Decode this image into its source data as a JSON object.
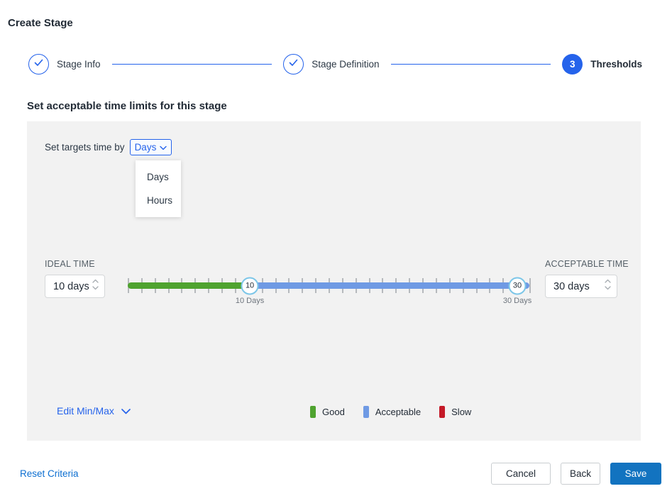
{
  "page": {
    "title": "Create Stage"
  },
  "stepper": {
    "steps": [
      {
        "label": "Stage Info",
        "state": "complete"
      },
      {
        "label": "Stage Definition",
        "state": "complete"
      },
      {
        "label": "Thresholds",
        "state": "active",
        "number": "3"
      }
    ]
  },
  "section": {
    "heading": "Set acceptable time limits for this stage"
  },
  "targets": {
    "label": "Set targets time by",
    "selected": "Days",
    "options": [
      "Days",
      "Hours"
    ]
  },
  "ideal": {
    "label": "IDEAL TIME",
    "value": "10 days"
  },
  "acceptable": {
    "label": "ACCEPTABLE TIME",
    "value": "30 days"
  },
  "slider": {
    "min_handle": "10",
    "max_handle": "30",
    "min_label": "10 Days",
    "max_label": "30 Days",
    "min_percent": 30.4,
    "max_percent": 97,
    "tick_intervals": 30
  },
  "edit_minmax": {
    "label": "Edit Min/Max"
  },
  "legend": [
    {
      "label": "Good",
      "color": "#4fa32f"
    },
    {
      "label": "Acceptable",
      "color": "#6f9ae4"
    },
    {
      "label": "Slow",
      "color": "#c41927"
    }
  ],
  "footer": {
    "reset": "Reset Criteria",
    "cancel": "Cancel",
    "back": "Back",
    "save": "Save"
  }
}
